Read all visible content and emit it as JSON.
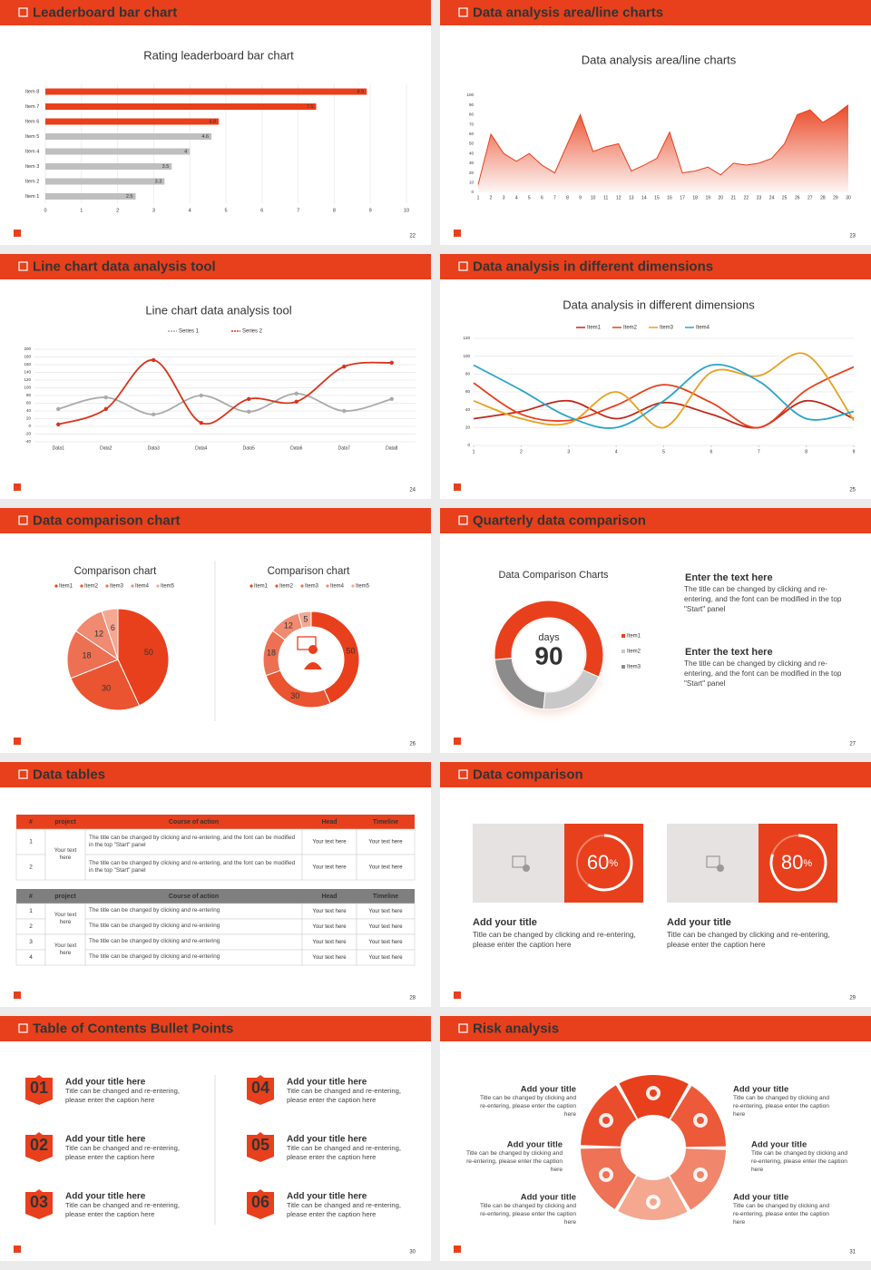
{
  "slides": [
    {
      "title": "Leaderboard bar chart",
      "page": "22",
      "chart": {
        "type": "hbar",
        "title": "Rating leaderboard bar chart",
        "categories": [
          "Item 1",
          "Item 2",
          "Item 3",
          "Item 4",
          "Item 5",
          "Item 6",
          "Item 7",
          "Item 8"
        ],
        "values": [
          2.5,
          3.3,
          3.5,
          4,
          4.6,
          4.8,
          7.5,
          8.9
        ],
        "colors": [
          "#bfbfbf",
          "#bfbfbf",
          "#bfbfbf",
          "#bfbfbf",
          "#bfbfbf",
          "#e8401c",
          "#e8401c",
          "#e8401c"
        ],
        "xlim": [
          0,
          10
        ],
        "xticks": [
          0,
          1,
          2,
          3,
          4,
          5,
          6,
          7,
          8,
          9,
          10
        ],
        "grid": true
      }
    },
    {
      "title": "Data analysis area/line charts",
      "page": "23",
      "chart": {
        "type": "area",
        "title": "Data analysis area/line charts",
        "x": [
          1,
          2,
          3,
          4,
          5,
          6,
          7,
          8,
          9,
          10,
          11,
          12,
          13,
          14,
          15,
          16,
          17,
          18,
          19,
          20,
          21,
          22,
          23,
          24,
          25,
          26,
          27,
          28,
          29,
          30
        ],
        "values": [
          8,
          60,
          40,
          32,
          40,
          28,
          20,
          50,
          80,
          42,
          47,
          50,
          22,
          28,
          35,
          62,
          20,
          22,
          26,
          18,
          30,
          28,
          30,
          35,
          50,
          80,
          85,
          72,
          80,
          90
        ],
        "color": "#e8401c",
        "xlim": [
          1,
          30
        ],
        "ylim": [
          0,
          100
        ],
        "yticks": [
          0,
          10,
          20,
          30,
          40,
          50,
          60,
          70,
          80,
          90,
          100
        ],
        "grid": false
      }
    },
    {
      "title": "Line chart data analysis tool",
      "page": "24",
      "chart": {
        "type": "line",
        "title": "Line chart data analysis tool",
        "categories": [
          "Data1",
          "Data2",
          "Data3",
          "Data4",
          "Data5",
          "Data6",
          "Data7",
          "Data8"
        ],
        "series": [
          {
            "name": "Series 1",
            "color": "#aaaaaa",
            "values": [
              45,
              75,
              31,
              80,
              38,
              85,
              40,
              71
            ]
          },
          {
            "name": "Series 2",
            "color": "#d9341c",
            "values": [
              5,
              45,
              172,
              9,
              71,
              64,
              155,
              165
            ]
          }
        ],
        "ylim": [
          -40,
          200
        ],
        "yticks": [
          -40,
          -20,
          0,
          20,
          40,
          60,
          80,
          100,
          120,
          140,
          160,
          180,
          200
        ],
        "grid": true,
        "smooth": true,
        "markers": true
      }
    },
    {
      "title": "Data analysis in different dimensions",
      "page": "25",
      "chart": {
        "type": "line",
        "title": "Data analysis in different dimensions",
        "x": [
          1,
          2,
          3,
          4,
          5,
          6,
          7,
          8,
          9
        ],
        "xlim": [
          1,
          9
        ],
        "series": [
          {
            "name": "Item1",
            "color": "#c0281a",
            "values": [
              30,
              38,
              50,
              30,
              48,
              35,
              20,
              50,
              30
            ]
          },
          {
            "name": "Item2",
            "color": "#e8401c",
            "values": [
              70,
              35,
              28,
              45,
              68,
              48,
              20,
              62,
              88
            ]
          },
          {
            "name": "Item3",
            "color": "#e8a020",
            "values": [
              50,
              30,
              25,
              60,
              20,
              82,
              78,
              102,
              28
            ]
          },
          {
            "name": "Item4",
            "color": "#2aa5c8",
            "values": [
              90,
              62,
              32,
              20,
              50,
              90,
              72,
              30,
              38
            ]
          }
        ],
        "ylim": [
          0,
          120
        ],
        "yticks": [
          0,
          20,
          40,
          60,
          80,
          100,
          120
        ],
        "grid": true,
        "smooth": true,
        "markers": false
      }
    },
    {
      "title": "Data comparison chart",
      "page": "26",
      "charts": [
        {
          "type": "pie",
          "title": "Comparison chart",
          "categories": [
            "Item1",
            "Item2",
            "Item3",
            "Item4",
            "Item5"
          ],
          "values": [
            50,
            30,
            18,
            12,
            6
          ],
          "colors": [
            "#e8401c",
            "#ea5430",
            "#ee7052",
            "#f08a70",
            "#f4a892"
          ]
        },
        {
          "type": "donut",
          "title": "Comparison chart",
          "categories": [
            "Item1",
            "Item2",
            "Item3",
            "Item4",
            "Item5"
          ],
          "values": [
            50,
            30,
            18,
            12,
            5
          ],
          "colors": [
            "#e8401c",
            "#ea5430",
            "#ee7052",
            "#f08a70",
            "#f4a892"
          ]
        }
      ]
    },
    {
      "title": "Quarterly data comparison",
      "page": "27",
      "chart": {
        "type": "donut",
        "title": "Data Comparison Charts",
        "categories": [
          "Item1",
          "Item2",
          "Item3"
        ],
        "values": [
          58,
          20,
          22
        ],
        "colors": [
          "#e8401c",
          "#c8c8c8",
          "#8c8c8c"
        ],
        "center_label": "days",
        "center_value": 90
      },
      "texts": [
        {
          "heading": "Enter the text here",
          "body": "The title can be changed by clicking and re-entering, and the font can be modified in the top \"Start\" panel"
        },
        {
          "heading": "Enter the text here",
          "body": "The title can be changed by clicking and re-entering, and the font can be modified in the top \"Start\" panel"
        }
      ]
    },
    {
      "title": "Data tables",
      "page": "28",
      "tables": [
        {
          "header": [
            "#",
            "project",
            "Course of action",
            "Head",
            "Timeline"
          ],
          "groups": [
            {
              "project": "Your text here",
              "rows": [
                {
                  "num": "1",
                  "course": "The title can be changed by clicking and re-entering, and the font can be modified in the top \"Start\" panel",
                  "head": "Your text here",
                  "timeline": "Your text here"
                },
                {
                  "num": "2",
                  "course": "The title can be changed by clicking and re-entering, and the font can be modified in the top \"Start\" panel",
                  "head": "Your text here",
                  "timeline": "Your text here"
                }
              ]
            }
          ]
        },
        {
          "header": [
            "#",
            "project",
            "Course of action",
            "Head",
            "Timeline"
          ],
          "groups": [
            {
              "project": "Your text here",
              "rows": [
                {
                  "num": "1",
                  "course": "The title can be changed by clicking and re-entering",
                  "head": "Your text here",
                  "timeline": "Your text here"
                },
                {
                  "num": "2",
                  "course": "The title can be changed by clicking and re-entering",
                  "head": "Your text here",
                  "timeline": "Your text here"
                }
              ]
            },
            {
              "project": "Your text here",
              "rows": [
                {
                  "num": "3",
                  "course": "The title can be changed by clicking and re-entering",
                  "head": "Your text here",
                  "timeline": "Your text here"
                },
                {
                  "num": "4",
                  "course": "The title can be changed by clicking and re-entering",
                  "head": "Your text here",
                  "timeline": "Your text here"
                }
              ]
            }
          ]
        }
      ]
    },
    {
      "title": "Data comparison",
      "page": "29",
      "cards": [
        {
          "value": 60,
          "unit": "%",
          "title": "Add your title",
          "body": "Title can be changed by clicking and re-entering, please enter the caption here"
        },
        {
          "value": 80,
          "unit": "%",
          "title": "Add your title",
          "body": "Title can be changed by clicking and re-entering, please enter the caption here"
        }
      ]
    },
    {
      "title": "Table of Contents Bullet Points",
      "page": "30",
      "items": [
        {
          "number": "01",
          "title": "Add your title here",
          "body": "Title can be changed and re-entering, please enter the caption here"
        },
        {
          "number": "02",
          "title": "Add your title here",
          "body": "Title can be changed and re-entering, please enter the caption here"
        },
        {
          "number": "03",
          "title": "Add your title here",
          "body": "Title can be changed and re-entering, please enter the caption here"
        },
        {
          "number": "04",
          "title": "Add your title here",
          "body": "Title can be changed and re-entering, please enter the caption here"
        },
        {
          "number": "05",
          "title": "Add your title here",
          "body": "Title can be changed and re-entering, please enter the caption here"
        },
        {
          "number": "06",
          "title": "Add your title here",
          "body": "Title can be changed and re-entering, please enter the caption here"
        }
      ]
    },
    {
      "title": "Risk analysis",
      "page": "31",
      "items": [
        {
          "title": "Add your title",
          "body": "Title can be changed by clicking and re-entering, please enter the caption here"
        },
        {
          "title": "Add your title",
          "body": "Title can be changed by clicking and re-entering, please enter the caption here"
        },
        {
          "title": "Add your title",
          "body": "Title can be changed by clicking and re-entering, please enter the caption here"
        },
        {
          "title": "Add your title",
          "body": "Title can be changed by clicking and re-entering, please enter the caption here"
        },
        {
          "title": "Add your title",
          "body": "Title can be changed by clicking and re-entering, please enter the caption here"
        },
        {
          "title": "Add your title",
          "body": "Title can be changed by clicking and re-entering, please enter the caption here"
        }
      ]
    }
  ]
}
